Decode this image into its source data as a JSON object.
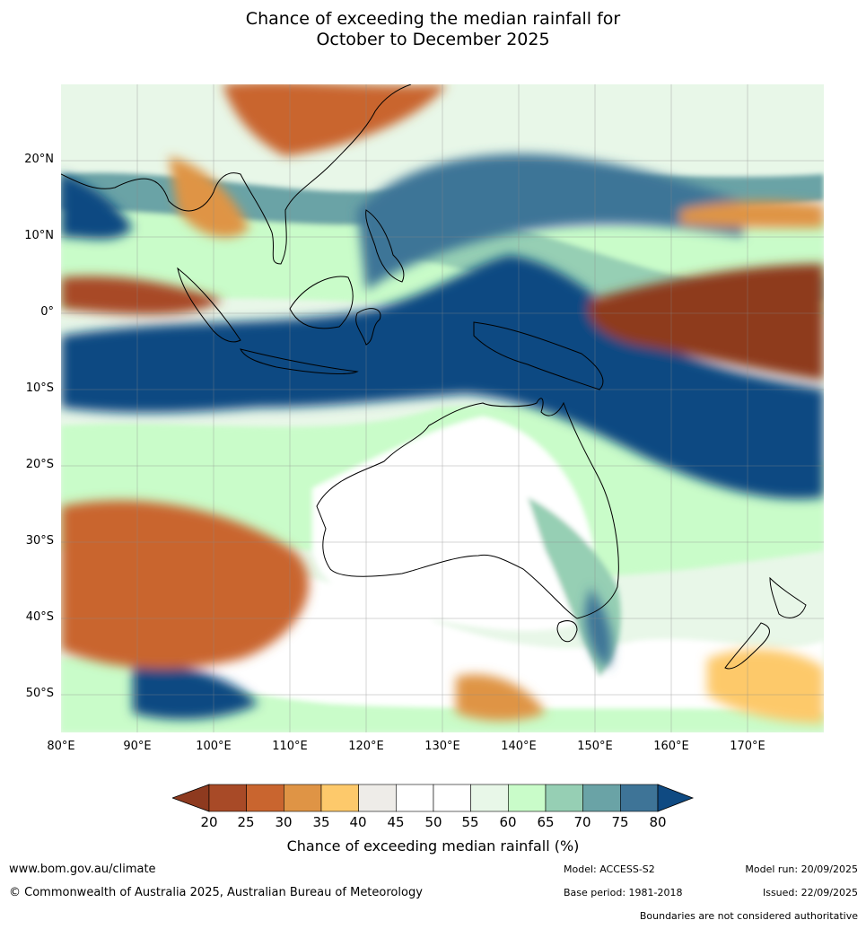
{
  "title": {
    "line1": "Chance of exceeding the median rainfall for",
    "line2": "October to December 2025"
  },
  "map": {
    "region": "Australia, Indonesia, Southern Ocean",
    "lat_labels": [
      "20°N",
      "10°N",
      "0°",
      "10°S",
      "20°S",
      "30°S",
      "40°S",
      "50°S"
    ],
    "lon_labels": [
      "80°E",
      "90°E",
      "100°E",
      "110°E",
      "120°E",
      "130°E",
      "140°E",
      "150°E",
      "160°E",
      "170°E"
    ]
  },
  "colorbar": {
    "ticks": [
      "20",
      "25",
      "30",
      "35",
      "40",
      "45",
      "50",
      "55",
      "60",
      "65",
      "70",
      "75",
      "80"
    ],
    "colors": [
      "#a84a27",
      "#c9652f",
      "#df9445",
      "#fdc96b",
      "#eeece8",
      "#ffffff",
      "#ffffff",
      "#e8f7e8",
      "#c9fcc9",
      "#96cfb4",
      "#6aa3a6",
      "#3e7497"
    ],
    "under_color": "#8e3a1f",
    "over_color": "#0f4a82",
    "label": "Chance of exceeding median rainfall (%)"
  },
  "footer": {
    "website": "www.bom.gov.au/climate",
    "copyright": "© Commonwealth of Australia 2025, Australian Bureau of Meteorology",
    "model": "Model: ACCESS-S2",
    "base_period": "Base period: 1981-2018",
    "model_run": "Model run: 20/09/2025",
    "issued": "Issued: 22/09/2025",
    "disclaimer": "Boundaries are not considered authoritative"
  }
}
